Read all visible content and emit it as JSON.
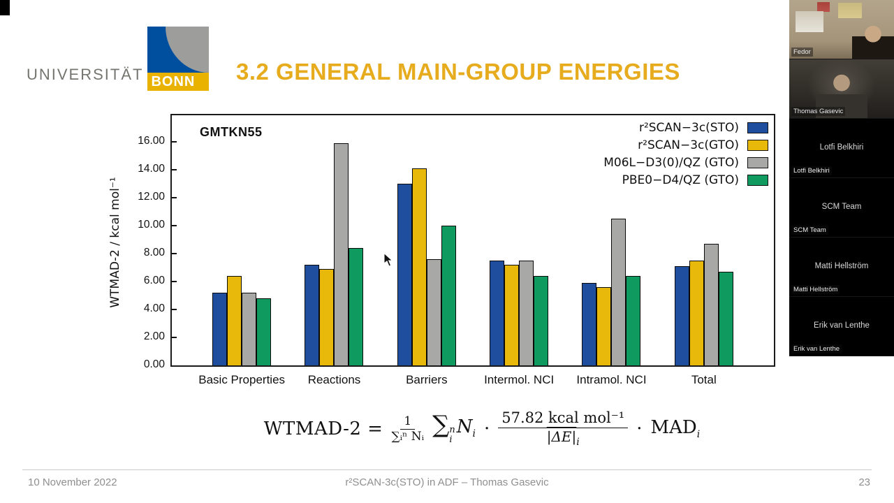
{
  "logo": {
    "university": "UNIVERSITÄT",
    "bonn": "BONN"
  },
  "header": {
    "title": "3.2 GENERAL MAIN-GROUP ENERGIES"
  },
  "chart_data": {
    "type": "bar",
    "title": "GMTKN55",
    "ylabel": "WTMAD-2 / kcal mol⁻¹",
    "ylim": [
      0,
      17.9
    ],
    "ytick_step": 2,
    "ytick_decimals": 2,
    "grid": false,
    "legend_position": "top-right",
    "categories": [
      "Basic Properties",
      "Reactions",
      "Barriers",
      "Intermol. NCI",
      "Intramol. NCI",
      "Total"
    ],
    "series": [
      {
        "name": "r²SCAN−3c(STO)",
        "color": "#1f4e9e",
        "values": [
          5.2,
          7.2,
          13.0,
          7.5,
          5.9,
          7.1
        ]
      },
      {
        "name": "r²SCAN−3c(GTO)",
        "color": "#e8b80a",
        "values": [
          6.4,
          6.9,
          14.1,
          7.2,
          5.6,
          7.5
        ]
      },
      {
        "name": "M06L−D3(0)/QZ (GTO)",
        "color": "#a8a8a6",
        "values": [
          5.2,
          15.9,
          7.6,
          7.5,
          10.5,
          8.7
        ]
      },
      {
        "name": "PBE0−D4/QZ (GTO)",
        "color": "#0f9b5f",
        "values": [
          4.8,
          8.4,
          10.0,
          6.4,
          6.4,
          6.7
        ]
      }
    ]
  },
  "formula": {
    "lhs": "WTMAD-2 =",
    "frac1_num": "1",
    "frac1_den": "∑ᵢⁿ Nᵢ",
    "sum_sigma": "∑",
    "sum_sup": "n",
    "sum_sub": "i",
    "sum_var": "N",
    "sum_var_sub": "i",
    "dot1": "·",
    "frac2_num": "57.82 kcal mol⁻¹",
    "frac2_den": "|ΔE|",
    "frac2_den_sub": "i",
    "dot2": "·",
    "tail": "MAD",
    "tail_sub": "i"
  },
  "footer": {
    "date": "10 November 2022",
    "center": "r²SCAN-3c(STO) in ADF – Thomas Gasevic",
    "page_number": "23"
  },
  "participants": [
    {
      "name": "Fedor",
      "video": true
    },
    {
      "name": "Thomas Gasevic",
      "video": true
    },
    {
      "name": "Lotfi Belkhiri",
      "video": false
    },
    {
      "name": "SCM Team",
      "video": false
    },
    {
      "name": "Matti Hellström",
      "video": false
    },
    {
      "name": "Erik van Lenthe",
      "video": false
    }
  ]
}
